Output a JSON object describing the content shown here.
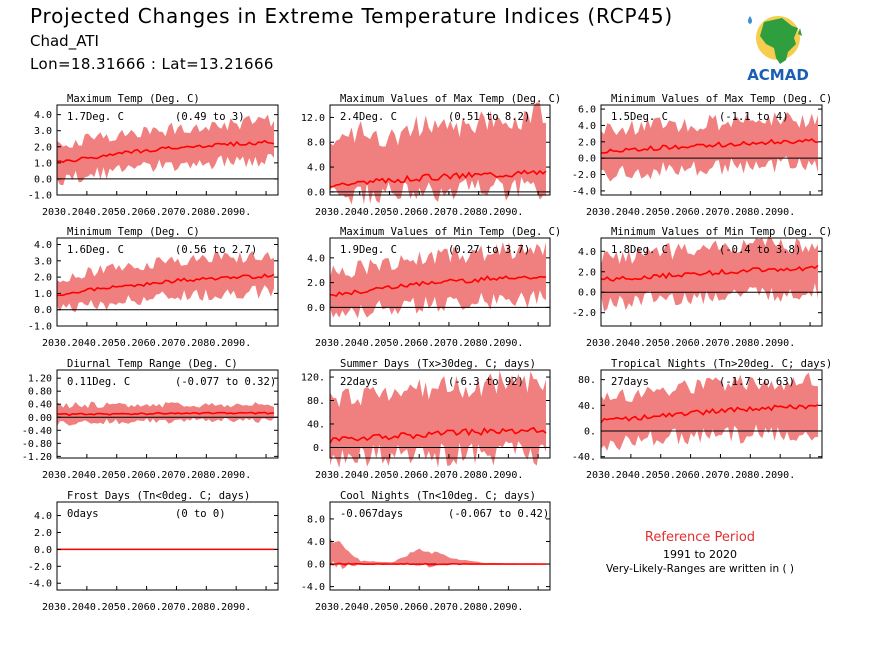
{
  "header": {
    "title": "Projected Changes in Extreme Temperature Indices (RCP45)",
    "location": "Chad_ATI",
    "coords": "Lon=18.31666 : Lat=13.21666"
  },
  "logo": {
    "text": "ACMAD",
    "icon": "africa-map-logo"
  },
  "reference": {
    "title": "Reference Period",
    "years": "1991 to 2020",
    "note": "Very-Likely-Ranges are written in ( )"
  },
  "colors": {
    "band": "#f08080",
    "line": "#ff0000",
    "zero": "#000000",
    "ref": "#e03030"
  },
  "chart_data": [
    {
      "type": "area",
      "title": "Maximum Temp (Deg. C)",
      "value": "1.7Deg. C",
      "range": "(0.49 to 3)",
      "x": [
        "2030.",
        "2040.",
        "2050.",
        "2060.",
        "2070.",
        "2080.",
        "2090."
      ],
      "yticks": [
        "4.0",
        "3.0",
        "2.0",
        "1.0",
        "0.0",
        "-1.0"
      ],
      "ylim": [
        -1,
        4.6
      ],
      "trend": [
        1.0,
        1.3,
        1.6,
        1.8,
        2.0,
        2.1,
        2.2,
        2.3
      ],
      "band_low": [
        0.1,
        0.4,
        0.7,
        0.9,
        1.1,
        1.2,
        1.3,
        1.4
      ],
      "band_high": [
        2.0,
        2.3,
        2.6,
        2.8,
        3.0,
        3.2,
        3.3,
        3.4
      ]
    },
    {
      "type": "area",
      "title": "Maximum Values of Max Temp (Deg. C)",
      "value": "2.4Deg. C",
      "range": "(0.51 to 8.2)",
      "x": [
        "2030.",
        "2040.",
        "2050.",
        "2060.",
        "2070.",
        "2080.",
        "2090."
      ],
      "yticks": [
        "12.0",
        "8.0",
        "4.0",
        "0.0"
      ],
      "ylim": [
        -0.5,
        14
      ],
      "trend": [
        1.2,
        1.5,
        1.9,
        2.3,
        2.6,
        2.8,
        3.0,
        3.2
      ],
      "band_low": [
        0.3,
        0.5,
        0.7,
        0.8,
        1.0,
        1.1,
        1.2,
        1.3
      ],
      "band_high": [
        7,
        9,
        8,
        10,
        9,
        11,
        10,
        12
      ]
    },
    {
      "type": "area",
      "title": "Minimum Values of Max Temp (Deg. C)",
      "value": "1.5Deg. C",
      "range": "(-1.1 to 4)",
      "x": [
        "2030.",
        "2040.",
        "2050.",
        "2060.",
        "2070.",
        "2080.",
        "2090."
      ],
      "yticks": [
        "6.0",
        "4.0",
        "2.0",
        "0.0",
        "-2.0",
        "-4.0"
      ],
      "ylim": [
        -4.5,
        6.5
      ],
      "trend": [
        0.8,
        1.0,
        1.3,
        1.5,
        1.7,
        1.9,
        2.0,
        2.1
      ],
      "band_low": [
        -1.5,
        -1.3,
        -1.0,
        -0.8,
        -0.6,
        -0.5,
        -0.4,
        -0.3
      ],
      "band_high": [
        3.0,
        3.3,
        3.6,
        3.8,
        4.0,
        4.2,
        4.3,
        4.4
      ]
    },
    {
      "type": "area",
      "title": "Minimum Temp (Deg. C)",
      "value": "1.6Deg. C",
      "range": "(0.56 to 2.7)",
      "x": [
        "2030.",
        "2040.",
        "2050.",
        "2060.",
        "2070.",
        "2080.",
        "2090."
      ],
      "yticks": [
        "4.0",
        "3.0",
        "2.0",
        "1.0",
        "0.0",
        "-1.0"
      ],
      "ylim": [
        -1,
        4.4
      ],
      "trend": [
        0.9,
        1.2,
        1.4,
        1.6,
        1.8,
        1.9,
        2.0,
        2.1
      ],
      "band_low": [
        0.1,
        0.4,
        0.6,
        0.8,
        1.0,
        1.1,
        1.2,
        1.3
      ],
      "band_high": [
        1.8,
        2.1,
        2.4,
        2.6,
        2.8,
        3.0,
        3.1,
        3.2
      ]
    },
    {
      "type": "area",
      "title": "Maximum Values of Min Temp (Deg. C)",
      "value": "1.9Deg. C",
      "range": "(0.27 to 3.7)",
      "x": [
        "2030.",
        "2040.",
        "2050.",
        "2060.",
        "2070.",
        "2080.",
        "2090."
      ],
      "yticks": [
        "4.0",
        "2.0",
        "0.0"
      ],
      "ylim": [
        -1.5,
        5.6
      ],
      "trend": [
        1.0,
        1.3,
        1.6,
        1.9,
        2.1,
        2.3,
        2.4,
        2.5
      ],
      "band_low": [
        -0.3,
        0.0,
        0.3,
        0.5,
        0.7,
        0.8,
        0.9,
        1.0
      ],
      "band_high": [
        2.5,
        2.9,
        3.3,
        3.6,
        3.9,
        4.1,
        4.3,
        4.4
      ]
    },
    {
      "type": "area",
      "title": "Minimum Values of Min Temp (Deg. C)",
      "value": "1.8Deg. C",
      "range": "(-0.4 to 3.8)",
      "x": [
        "2030.",
        "2040.",
        "2050.",
        "2060.",
        "2070.",
        "2080.",
        "2090."
      ],
      "yticks": [
        "4.0",
        "2.0",
        "0.0",
        "-2.0"
      ],
      "ylim": [
        -3.3,
        5.3
      ],
      "trend": [
        1.2,
        1.4,
        1.6,
        1.8,
        2.0,
        2.2,
        2.3,
        2.4
      ],
      "band_low": [
        -0.8,
        -0.6,
        -0.3,
        -0.1,
        0.1,
        0.2,
        0.3,
        0.4
      ],
      "band_high": [
        3.0,
        3.3,
        3.6,
        3.8,
        4.0,
        4.2,
        4.3,
        4.4
      ]
    },
    {
      "type": "area",
      "title": "Diurnal Temp Range (Deg. C)",
      "value": "0.11Deg. C",
      "range": "(-0.077 to 0.32)",
      "x": [
        "2030.",
        "2040.",
        "2050.",
        "2060.",
        "2070.",
        "2080.",
        "2090."
      ],
      "yticks": [
        "1.20",
        "0.80",
        "0.40",
        "0.00",
        "-0.40",
        "-0.80",
        "-1.20"
      ],
      "ylim": [
        -1.25,
        1.45
      ],
      "trend": [
        0.08,
        0.1,
        0.1,
        0.11,
        0.11,
        0.12,
        0.12,
        0.13
      ],
      "band_low": [
        -0.15,
        -0.12,
        -0.1,
        -0.08,
        -0.07,
        -0.06,
        -0.05,
        -0.05
      ],
      "band_high": [
        0.32,
        0.34,
        0.33,
        0.35,
        0.34,
        0.36,
        0.35,
        0.37
      ]
    },
    {
      "type": "area",
      "title": "Summer Days (Tx>30deg. C; days)",
      "value": "22days",
      "range": "(-6.3 to 92)",
      "x": [
        "2030.",
        "2040.",
        "2050.",
        "2060.",
        "2070.",
        "2080.",
        "2090."
      ],
      "yticks": [
        "120.",
        "80.",
        "40.",
        "0."
      ],
      "ylim": [
        -18,
        132
      ],
      "trend": [
        12,
        16,
        19,
        22,
        25,
        27,
        28,
        29
      ],
      "band_low": [
        -10,
        -8,
        -6,
        -5,
        -3,
        -2,
        -1,
        0
      ],
      "band_high": [
        75,
        82,
        88,
        92,
        95,
        98,
        100,
        102
      ]
    },
    {
      "type": "area",
      "title": "Tropical Nights (Tn>20deg. C; days)",
      "value": "27days",
      "range": "(-1.7 to 63)",
      "x": [
        "2030.",
        "2040.",
        "2050.",
        "2060.",
        "2070.",
        "2080.",
        "2090."
      ],
      "yticks": [
        "80.",
        "40.",
        "0.",
        "-40."
      ],
      "ylim": [
        -42,
        95
      ],
      "trend": [
        15,
        20,
        24,
        28,
        32,
        35,
        37,
        39
      ],
      "band_low": [
        -15,
        -10,
        -5,
        -2,
        0,
        2,
        4,
        5
      ],
      "band_high": [
        45,
        52,
        58,
        63,
        66,
        69,
        71,
        73
      ]
    },
    {
      "type": "area",
      "title": "Frost Days (Tn<0deg. C; days)",
      "value": "0days",
      "range": "(0 to 0)",
      "x": [
        "2030.",
        "2040.",
        "2050.",
        "2060.",
        "2070.",
        "2080.",
        "2090."
      ],
      "yticks": [
        "4.0",
        "2.0",
        "0.0",
        "-2.0",
        "-4.0"
      ],
      "ylim": [
        -4.8,
        5.6
      ],
      "trend": [
        0,
        0,
        0,
        0,
        0,
        0,
        0,
        0
      ],
      "band_low": [
        0,
        0,
        0,
        0,
        0,
        0,
        0,
        0
      ],
      "band_high": [
        0,
        0,
        0,
        0,
        0,
        0,
        0,
        0
      ]
    },
    {
      "type": "area",
      "title": "Cool Nights (Tn<10deg. C; days)",
      "value": "-0.067days",
      "range": "(-0.067 to 0.42)",
      "x": [
        "2030.",
        "2040.",
        "2050.",
        "2060.",
        "2070.",
        "2080.",
        "2090."
      ],
      "yticks": [
        "8.0",
        "4.0",
        "0.0",
        "-4.0"
      ],
      "ylim": [
        -4.6,
        11
      ],
      "trend": [
        0,
        0,
        0,
        0,
        0,
        0,
        0,
        0
      ],
      "band_low": [
        0,
        0,
        0,
        0,
        0,
        0,
        0,
        0
      ],
      "band_high": [
        4.5,
        0.5,
        0.3,
        2.5,
        0.8,
        0.2,
        0.1,
        0.1
      ]
    }
  ]
}
